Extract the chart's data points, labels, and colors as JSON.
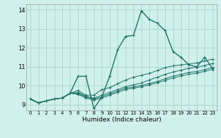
{
  "title": "",
  "xlabel": "Humidex (Indice chaleur)",
  "bg_color": "#cff0eb",
  "grid_color": "#aad8d0",
  "line_color": "#1a6e64",
  "xlim": [
    -0.5,
    23.5
  ],
  "ylim": [
    8.7,
    14.3
  ],
  "xticks": [
    0,
    1,
    2,
    3,
    4,
    5,
    6,
    7,
    8,
    9,
    10,
    11,
    12,
    13,
    14,
    15,
    16,
    17,
    18,
    19,
    20,
    21,
    22,
    23
  ],
  "yticks": [
    9,
    10,
    11,
    12,
    13,
    14
  ],
  "series": [
    [
      9.3,
      9.1,
      9.2,
      9.3,
      9.35,
      9.6,
      10.5,
      10.5,
      8.8,
      9.4,
      10.5,
      11.9,
      12.6,
      12.65,
      13.95,
      13.5,
      13.3,
      12.9,
      11.8,
      11.5,
      11.1,
      11.0,
      11.5,
      10.9
    ],
    [
      9.3,
      9.1,
      9.2,
      9.3,
      9.35,
      9.6,
      9.75,
      9.5,
      9.5,
      9.8,
      9.9,
      10.1,
      10.3,
      10.45,
      10.55,
      10.65,
      10.8,
      10.95,
      11.05,
      11.1,
      11.15,
      11.2,
      11.3,
      11.4
    ],
    [
      9.3,
      9.1,
      9.2,
      9.3,
      9.35,
      9.6,
      9.65,
      9.45,
      9.35,
      9.5,
      9.65,
      9.8,
      9.95,
      10.05,
      10.15,
      10.3,
      10.45,
      10.6,
      10.72,
      10.82,
      10.92,
      10.97,
      11.07,
      11.17
    ],
    [
      9.3,
      9.1,
      9.2,
      9.3,
      9.35,
      9.6,
      9.6,
      9.4,
      9.3,
      9.42,
      9.57,
      9.72,
      9.87,
      9.94,
      10.02,
      10.12,
      10.22,
      10.37,
      10.5,
      10.6,
      10.7,
      10.75,
      10.85,
      10.95
    ],
    [
      9.3,
      9.1,
      9.2,
      9.3,
      9.35,
      9.6,
      9.55,
      9.35,
      9.25,
      9.35,
      9.5,
      9.65,
      9.8,
      9.87,
      9.95,
      10.05,
      10.15,
      10.28,
      10.41,
      10.51,
      10.61,
      10.66,
      10.76,
      10.86
    ]
  ]
}
